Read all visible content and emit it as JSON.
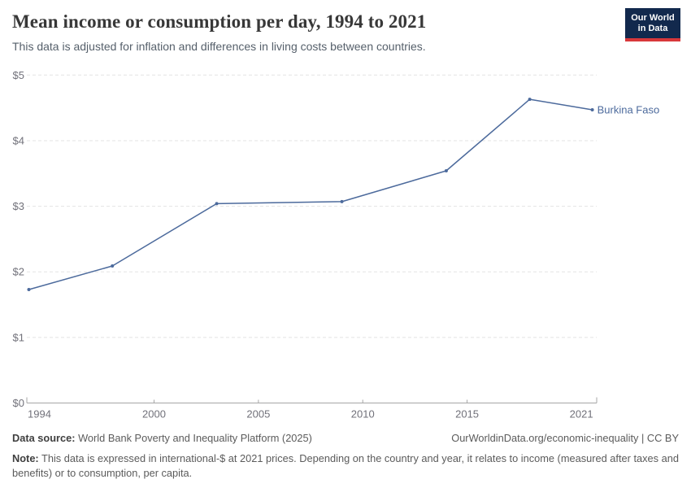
{
  "header": {
    "title": "Mean income or consumption per day, 1994 to 2021",
    "subtitle": "This data is adjusted for inflation and differences in living costs between countries."
  },
  "logo": {
    "line1": "Our World",
    "line2": "in Data",
    "bg_color": "#12294d",
    "accent_color": "#d8383b"
  },
  "chart_data": {
    "type": "line",
    "title": "Mean income or consumption per day, 1994 to 2021",
    "xlabel": "",
    "ylabel": "",
    "x": [
      1994,
      1998,
      2003,
      2009,
      2014,
      2018,
      2021
    ],
    "series": [
      {
        "name": "Burkina Faso",
        "values": [
          1.73,
          2.09,
          3.04,
          3.07,
          3.54,
          4.63,
          4.47
        ],
        "color": "#4C6A9C"
      }
    ],
    "x_ticks": [
      1994,
      2000,
      2005,
      2010,
      2015,
      2021
    ],
    "y_ticks": [
      0,
      1,
      2,
      3,
      4,
      5
    ],
    "y_tick_prefix": "$",
    "xlim": [
      1994,
      2021
    ],
    "ylim": [
      0,
      5
    ],
    "grid": "horizontal-dashed",
    "legend_position": "end-of-line-label",
    "colors": {
      "gridline": "#e3e3e3",
      "axis": "#a6a6a6",
      "tick_label": "#71717a"
    }
  },
  "footer": {
    "source_label": "Data source:",
    "source_text": " World Bank Poverty and Inequality Platform (2025)",
    "link": "OurWorldinData.org/economic-inequality | CC BY",
    "note_label": "Note:",
    "note_text": " This data is expressed in international-$ at 2021 prices. Depending on the country and year, it relates to income (measured after taxes and benefits) or to consumption, per capita."
  }
}
